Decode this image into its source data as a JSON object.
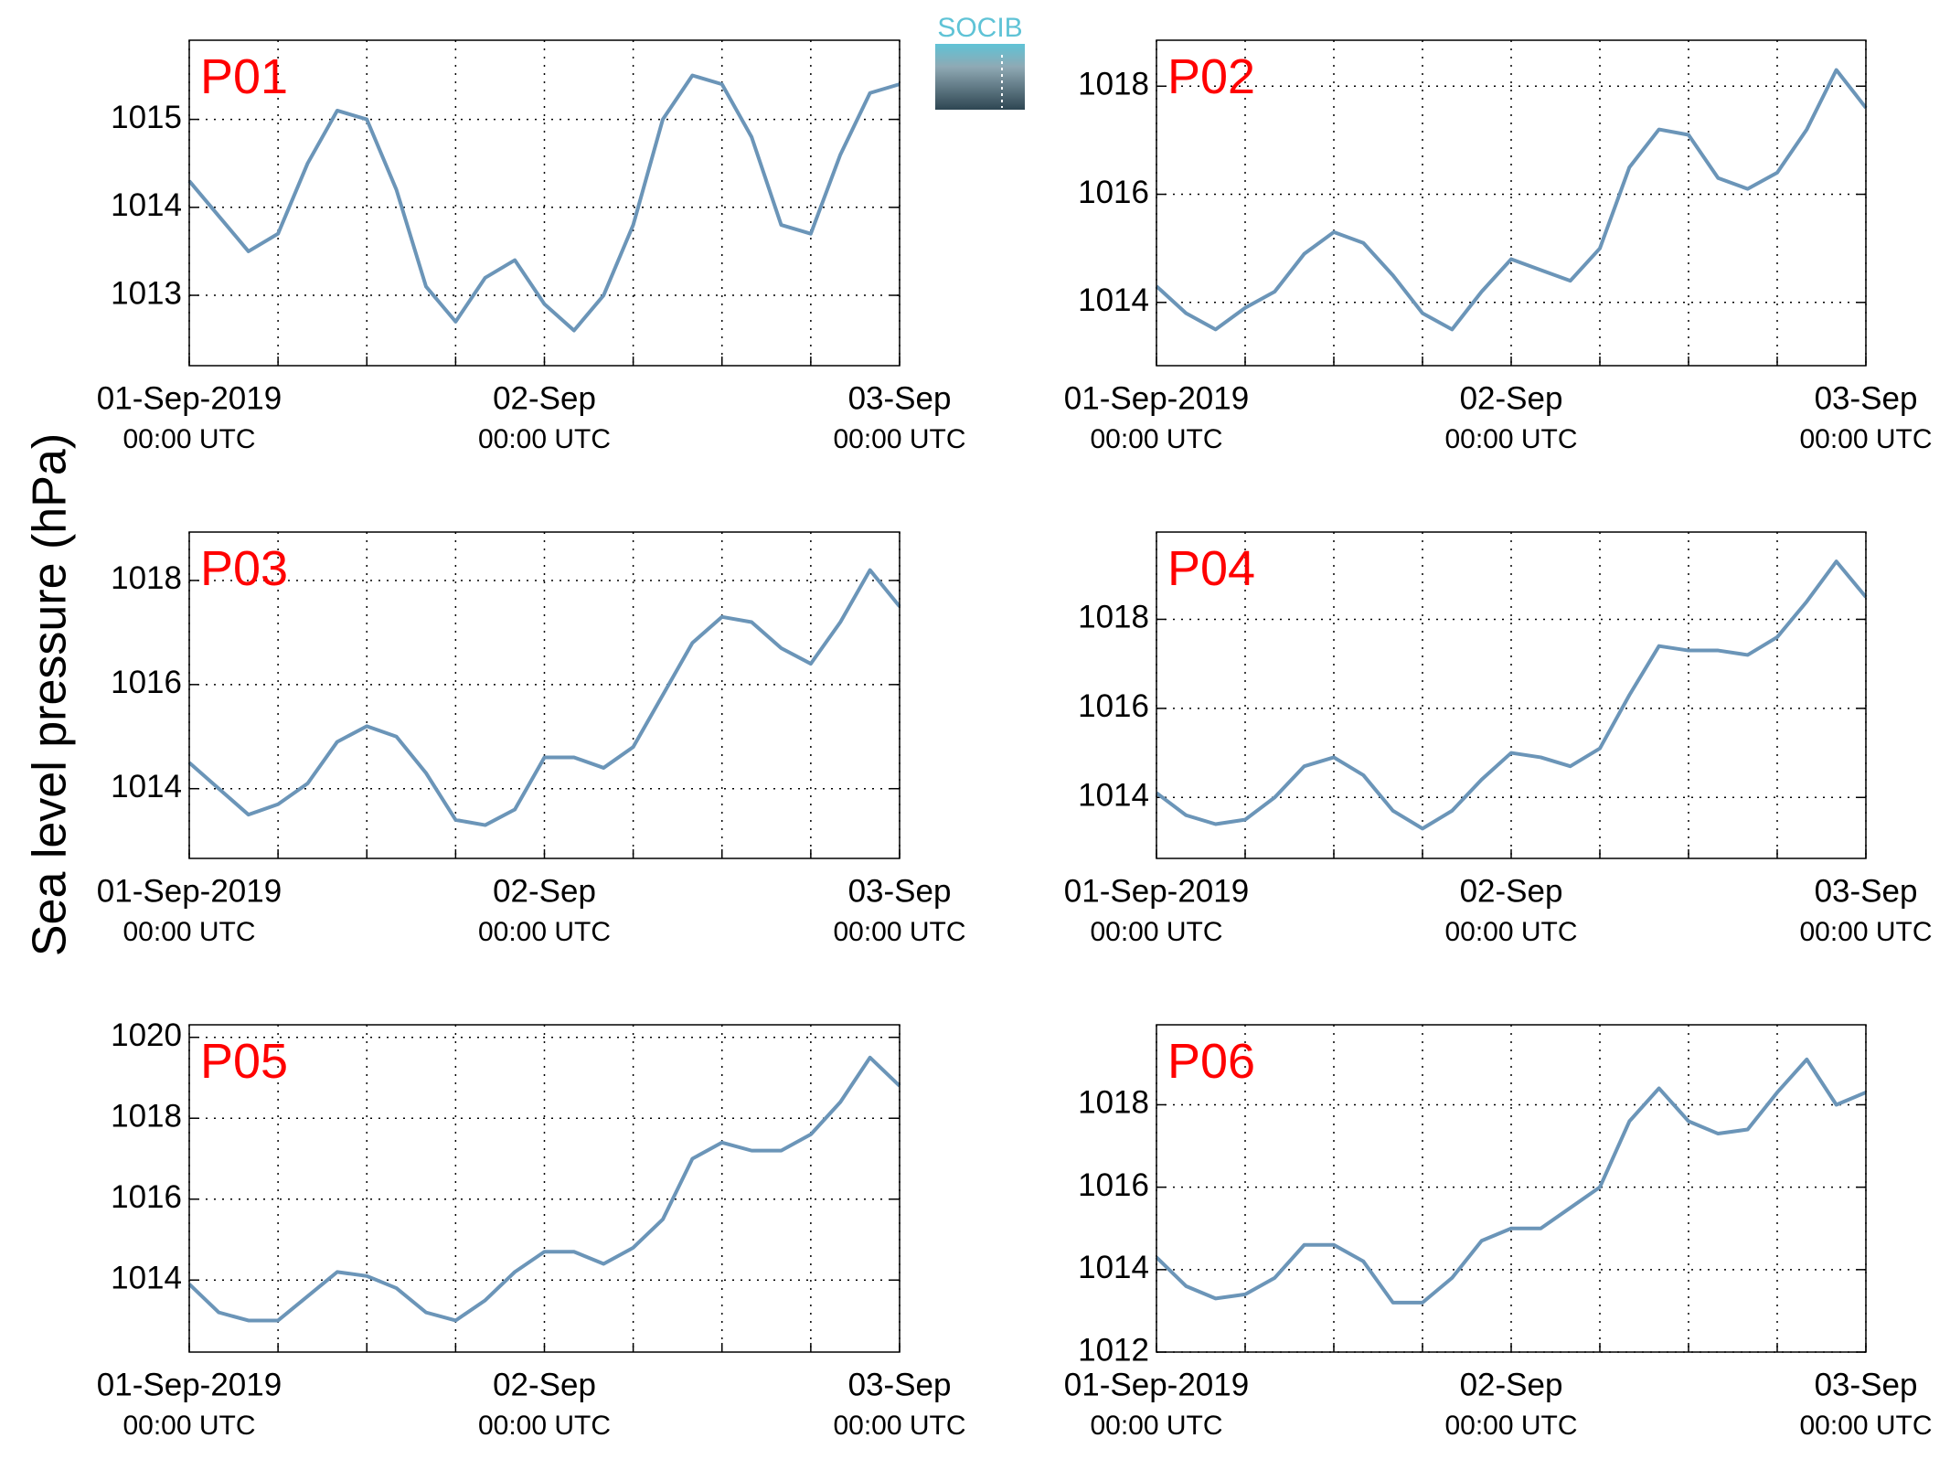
{
  "ylabel": "Sea level pressure (hPa)",
  "logo": "SOCIB",
  "chart_data": [
    {
      "type": "line",
      "title": "P01",
      "x": [
        0,
        2,
        4,
        6,
        8,
        10,
        12,
        14,
        16,
        18,
        20,
        22,
        24,
        26,
        28,
        30,
        32,
        34,
        36,
        38,
        40,
        42,
        44,
        46,
        48
      ],
      "series": [
        {
          "color": "#6b95b8",
          "values": [
            1014.3,
            1013.9,
            1013.5,
            1013.7,
            1014.5,
            1015.1,
            1015.0,
            1014.2,
            1013.1,
            1012.7,
            1013.2,
            1013.4,
            1012.9,
            1012.6,
            1013.0,
            1013.8,
            1015.0,
            1015.5,
            1015.4,
            1014.8,
            1013.8,
            1013.7,
            1014.6,
            1015.3,
            1015.4
          ]
        }
      ],
      "xlim": [
        0,
        48
      ],
      "xticks": [
        {
          "value": 0,
          "label": "01-Sep-2019",
          "sublabel": "00:00 UTC"
        },
        {
          "value": 24,
          "label": "02-Sep",
          "sublabel": "00:00 UTC"
        },
        {
          "value": 48,
          "label": "03-Sep",
          "sublabel": "00:00 UTC"
        }
      ],
      "xminor": [
        6,
        12,
        18,
        30,
        36,
        42
      ],
      "ylim": [
        1012.2,
        1015.9
      ],
      "yticks": [
        1013,
        1014,
        1015
      ],
      "grid": true
    },
    {
      "type": "line",
      "title": "P02",
      "x": [
        0,
        2,
        4,
        6,
        8,
        10,
        12,
        14,
        16,
        18,
        20,
        22,
        24,
        26,
        28,
        30,
        32,
        34,
        36,
        38,
        40,
        42,
        44,
        46,
        48
      ],
      "series": [
        {
          "color": "#6b95b8",
          "values": [
            1014.3,
            1013.8,
            1013.5,
            1013.9,
            1014.2,
            1014.9,
            1015.3,
            1015.1,
            1014.5,
            1013.8,
            1013.5,
            1014.2,
            1014.8,
            1014.6,
            1014.4,
            1015.0,
            1016.5,
            1017.2,
            1017.1,
            1016.3,
            1016.1,
            1016.4,
            1017.2,
            1018.3,
            1017.6
          ]
        }
      ],
      "xlim": [
        0,
        48
      ],
      "xticks": [
        {
          "value": 0,
          "label": "01-Sep-2019",
          "sublabel": "00:00 UTC"
        },
        {
          "value": 24,
          "label": "02-Sep",
          "sublabel": "00:00 UTC"
        },
        {
          "value": 48,
          "label": "03-Sep",
          "sublabel": "00:00 UTC"
        }
      ],
      "xminor": [
        6,
        12,
        18,
        30,
        36,
        42
      ],
      "ylim": [
        1012.83,
        1018.85
      ],
      "yticks": [
        1014,
        1016,
        1018
      ],
      "grid": true
    },
    {
      "type": "line",
      "title": "P03",
      "x": [
        0,
        2,
        4,
        6,
        8,
        10,
        12,
        14,
        16,
        18,
        20,
        22,
        24,
        26,
        28,
        30,
        32,
        34,
        36,
        38,
        40,
        42,
        44,
        46,
        48
      ],
      "series": [
        {
          "color": "#6b95b8",
          "values": [
            1014.5,
            1014.0,
            1013.5,
            1013.7,
            1014.1,
            1014.9,
            1015.2,
            1015.0,
            1014.3,
            1013.4,
            1013.3,
            1013.6,
            1014.6,
            1014.6,
            1014.4,
            1014.8,
            1015.8,
            1016.8,
            1017.3,
            1017.2,
            1016.7,
            1016.4,
            1017.2,
            1018.2,
            1017.5
          ]
        }
      ],
      "xlim": [
        0,
        48
      ],
      "xticks": [
        {
          "value": 0,
          "label": "01-Sep-2019",
          "sublabel": "00:00 UTC"
        },
        {
          "value": 24,
          "label": "02-Sep",
          "sublabel": "00:00 UTC"
        },
        {
          "value": 48,
          "label": "03-Sep",
          "sublabel": "00:00 UTC"
        }
      ],
      "xminor": [
        6,
        12,
        18,
        30,
        36,
        42
      ],
      "ylim": [
        1012.66,
        1018.93
      ],
      "yticks": [
        1014,
        1016,
        1018
      ],
      "grid": true
    },
    {
      "type": "line",
      "title": "P04",
      "x": [
        0,
        2,
        4,
        6,
        8,
        10,
        12,
        14,
        16,
        18,
        20,
        22,
        24,
        26,
        28,
        30,
        32,
        34,
        36,
        38,
        40,
        42,
        44,
        46,
        48
      ],
      "series": [
        {
          "color": "#6b95b8",
          "values": [
            1014.1,
            1013.6,
            1013.4,
            1013.5,
            1014.0,
            1014.7,
            1014.9,
            1014.5,
            1013.7,
            1013.3,
            1013.7,
            1014.4,
            1015.0,
            1014.9,
            1014.7,
            1015.1,
            1016.3,
            1017.4,
            1017.3,
            1017.3,
            1017.2,
            1017.6,
            1018.4,
            1019.3,
            1018.5
          ]
        }
      ],
      "xlim": [
        0,
        48
      ],
      "xticks": [
        {
          "value": 0,
          "label": "01-Sep-2019",
          "sublabel": "00:00 UTC"
        },
        {
          "value": 24,
          "label": "02-Sep",
          "sublabel": "00:00 UTC"
        },
        {
          "value": 48,
          "label": "03-Sep",
          "sublabel": "00:00 UTC"
        }
      ],
      "xminor": [
        6,
        12,
        18,
        30,
        36,
        42
      ],
      "ylim": [
        1012.63,
        1019.96
      ],
      "yticks": [
        1014,
        1016,
        1018
      ],
      "grid": true
    },
    {
      "type": "line",
      "title": "P05",
      "x": [
        0,
        2,
        4,
        6,
        8,
        10,
        12,
        14,
        16,
        18,
        20,
        22,
        24,
        26,
        28,
        30,
        32,
        34,
        36,
        38,
        40,
        42,
        44,
        46,
        48
      ],
      "series": [
        {
          "color": "#6b95b8",
          "values": [
            1013.9,
            1013.2,
            1013.0,
            1013.0,
            1013.6,
            1014.2,
            1014.1,
            1013.8,
            1013.2,
            1013.0,
            1013.5,
            1014.2,
            1014.7,
            1014.7,
            1014.4,
            1014.8,
            1015.5,
            1017.0,
            1017.4,
            1017.2,
            1017.2,
            1017.6,
            1018.4,
            1019.5,
            1018.8
          ]
        }
      ],
      "xlim": [
        0,
        48
      ],
      "xticks": [
        {
          "value": 0,
          "label": "01-Sep-2019",
          "sublabel": "00:00 UTC"
        },
        {
          "value": 24,
          "label": "02-Sep",
          "sublabel": "00:00 UTC"
        },
        {
          "value": 48,
          "label": "03-Sep",
          "sublabel": "00:00 UTC"
        }
      ],
      "xminor": [
        6,
        12,
        18,
        30,
        36,
        42
      ],
      "ylim": [
        1012.22,
        1020.31
      ],
      "yticks": [
        1014,
        1016,
        1018,
        1020
      ],
      "grid": true
    },
    {
      "type": "line",
      "title": "P06",
      "x": [
        0,
        2,
        4,
        6,
        8,
        10,
        12,
        14,
        16,
        18,
        20,
        22,
        24,
        26,
        28,
        30,
        32,
        34,
        36,
        38,
        40,
        42,
        44,
        46,
        48
      ],
      "series": [
        {
          "color": "#6b95b8",
          "values": [
            1014.3,
            1013.6,
            1013.3,
            1013.4,
            1013.8,
            1014.6,
            1014.6,
            1014.2,
            1013.2,
            1013.2,
            1013.8,
            1014.7,
            1015.0,
            1015.0,
            1015.5,
            1016.0,
            1017.6,
            1018.4,
            1017.6,
            1017.3,
            1017.4,
            1018.3,
            1019.1,
            1018.0,
            1018.3
          ]
        }
      ],
      "xlim": [
        0,
        48
      ],
      "xticks": [
        {
          "value": 0,
          "label": "01-Sep-2019",
          "sublabel": "00:00 UTC"
        },
        {
          "value": 24,
          "label": "02-Sep",
          "sublabel": "00:00 UTC"
        },
        {
          "value": 48,
          "label": "03-Sep",
          "sublabel": "00:00 UTC"
        }
      ],
      "xminor": [
        6,
        12,
        18,
        30,
        36,
        42
      ],
      "ylim": [
        1012,
        1019.94
      ],
      "yticks": [
        1012,
        1014,
        1016,
        1018
      ],
      "grid": true
    }
  ]
}
